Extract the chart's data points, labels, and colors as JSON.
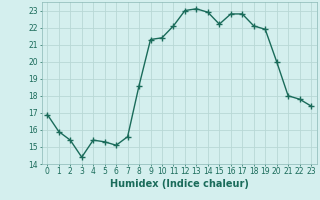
{
  "x": [
    0,
    1,
    2,
    3,
    4,
    5,
    6,
    7,
    8,
    9,
    10,
    11,
    12,
    13,
    14,
    15,
    16,
    17,
    18,
    19,
    20,
    21,
    22,
    23
  ],
  "y": [
    16.9,
    15.9,
    15.4,
    14.4,
    15.4,
    15.3,
    15.1,
    15.6,
    18.6,
    21.3,
    21.4,
    22.1,
    23.0,
    23.1,
    22.9,
    22.2,
    22.8,
    22.8,
    22.1,
    21.9,
    20.0,
    18.0,
    17.8,
    17.4
  ],
  "line_color": "#1a6b5a",
  "marker": "+",
  "markersize": 4,
  "linewidth": 1.0,
  "xlim": [
    -0.5,
    23.5
  ],
  "ylim": [
    14,
    23.5
  ],
  "yticks": [
    14,
    15,
    16,
    17,
    18,
    19,
    20,
    21,
    22,
    23
  ],
  "xticks": [
    0,
    1,
    2,
    3,
    4,
    5,
    6,
    7,
    8,
    9,
    10,
    11,
    12,
    13,
    14,
    15,
    16,
    17,
    18,
    19,
    20,
    21,
    22,
    23
  ],
  "xlabel": "Humidex (Indice chaleur)",
  "xlabel_fontsize": 7,
  "tick_fontsize": 5.5,
  "background_color": "#d4efee",
  "grid_color": "#b8d8d5",
  "spine_color": "#8ab8b5"
}
